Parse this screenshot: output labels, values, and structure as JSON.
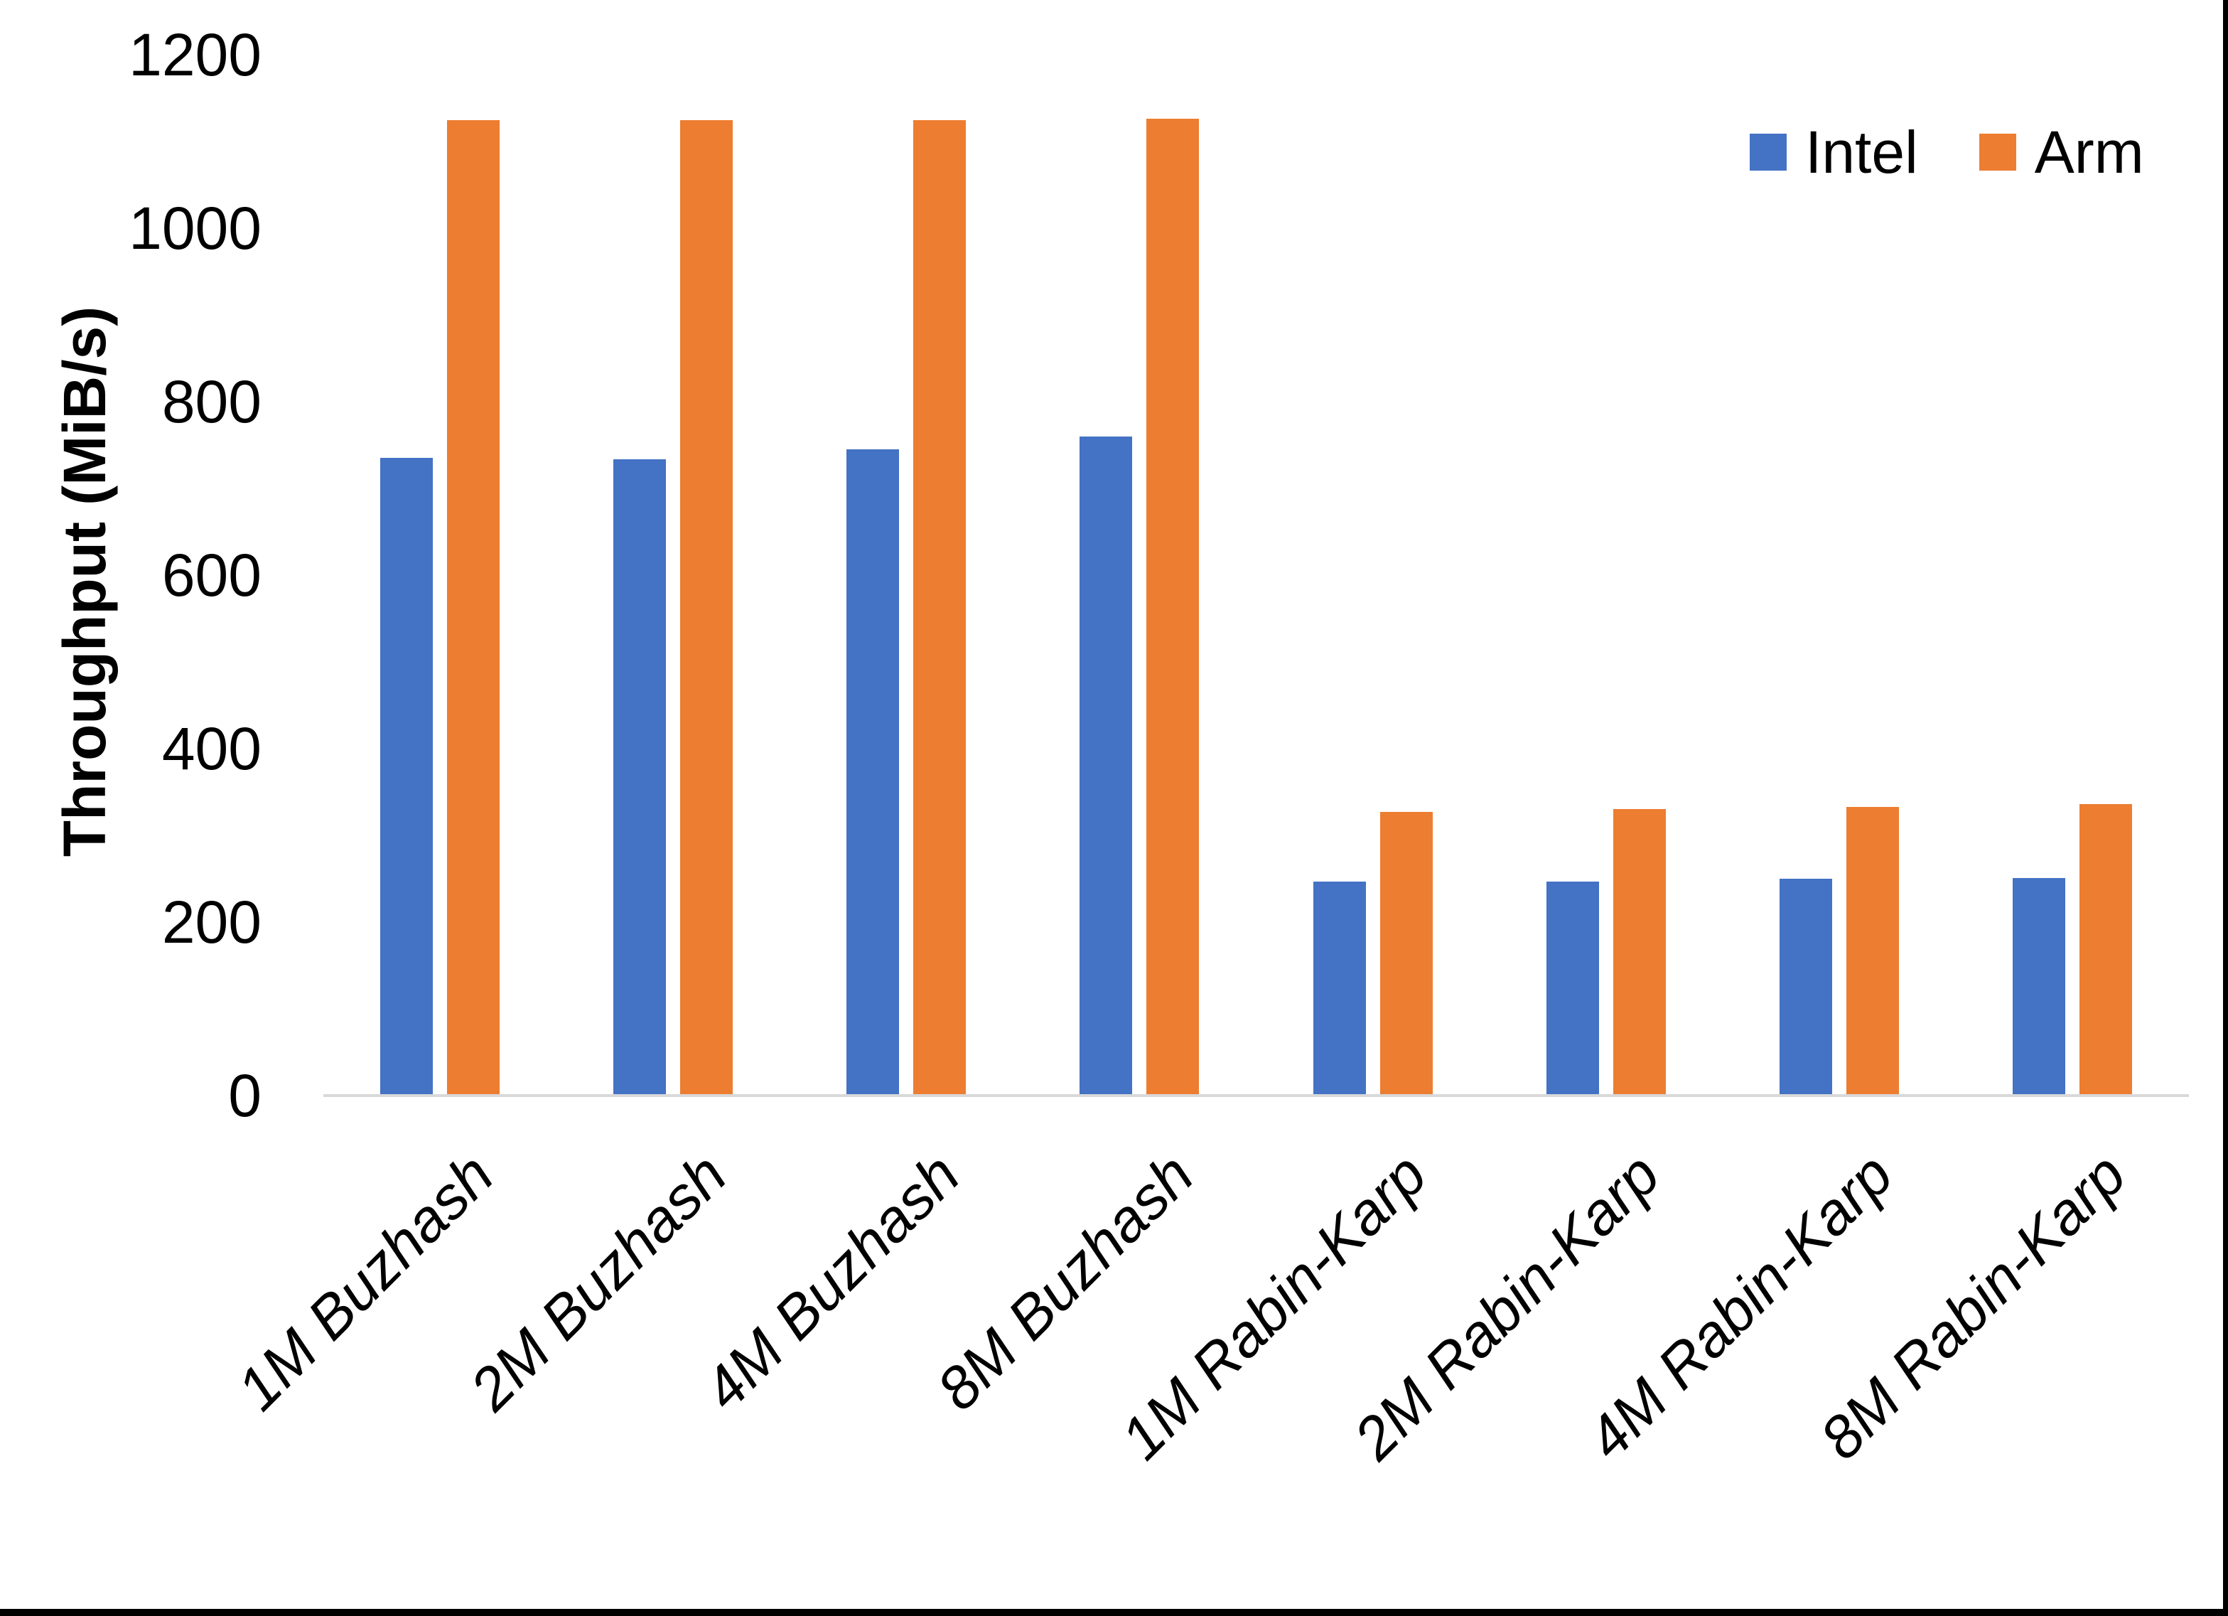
{
  "chart_data": {
    "type": "bar",
    "title": "",
    "xlabel": "",
    "ylabel": "Throughput (MiB/s)",
    "categories": [
      "1M Buzhash",
      "2M Buzhash",
      "4M Buzhash",
      "8M Buzhash",
      "1M Rabin-Karp",
      "2M Rabin-Karp",
      "4M Rabin-Karp",
      "8M Rabin-Karp"
    ],
    "series": [
      {
        "name": "Intel",
        "color": "#4472C4",
        "values": [
          735,
          734,
          745,
          760,
          247,
          247,
          250,
          251
        ]
      },
      {
        "name": "Arm",
        "color": "#ED7D31",
        "values": [
          1125,
          1125,
          1125,
          1126,
          327,
          330,
          333,
          336
        ]
      }
    ],
    "ylim": [
      0,
      1200
    ],
    "yticks": [
      0,
      200,
      400,
      600,
      800,
      1000,
      1200
    ],
    "grid": false,
    "legend_position": "top-right",
    "x_tick_rotation_deg": 45,
    "x_tick_style": "italic",
    "axis_line_color": "#D9D9D9",
    "text_color": "#000000"
  },
  "frame": {
    "right_border_color": "#000000",
    "bottom_border_color": "#000000"
  }
}
